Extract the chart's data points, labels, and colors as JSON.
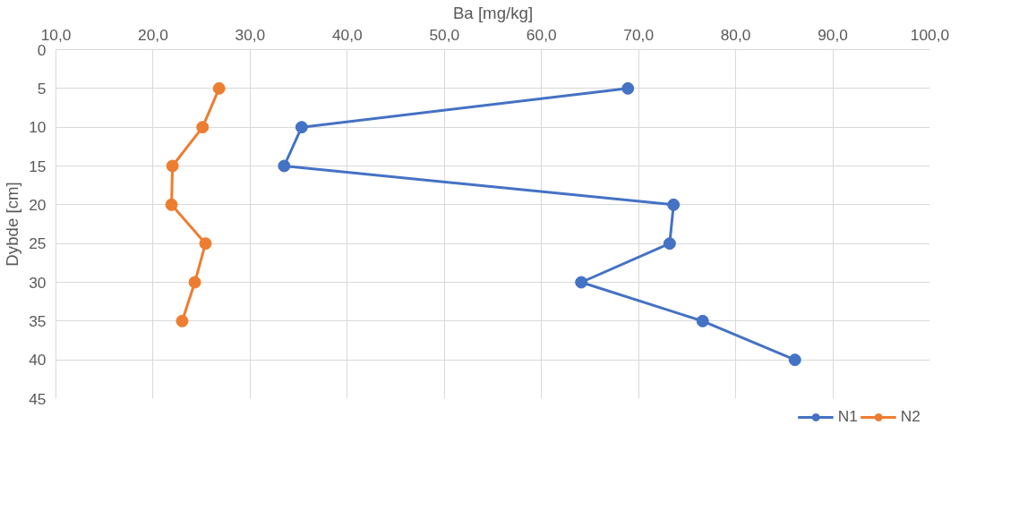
{
  "chart_data": {
    "type": "line",
    "xlabel": "Ba [mg/kg]",
    "ylabel": "Dybde [cm]",
    "xlim": [
      10,
      100
    ],
    "xticks": [
      {
        "value": 10,
        "label": "10,0"
      },
      {
        "value": 20,
        "label": "20,0"
      },
      {
        "value": 30,
        "label": "30,0"
      },
      {
        "value": 40,
        "label": "40,0"
      },
      {
        "value": 50,
        "label": "50,0"
      },
      {
        "value": 60,
        "label": "60,0"
      },
      {
        "value": 70,
        "label": "70,0"
      },
      {
        "value": 80,
        "label": "80,0"
      },
      {
        "value": 90,
        "label": "90,0"
      },
      {
        "value": 100,
        "label": "100,0"
      }
    ],
    "ylim": [
      45,
      0
    ],
    "yticks": [
      0,
      5,
      10,
      15,
      20,
      25,
      30,
      35,
      40,
      45
    ],
    "grid": true,
    "legend": "bottom",
    "marker": "circle",
    "line_style": "solid",
    "series": [
      {
        "name": "N1",
        "color": "#4472c4",
        "x": [
          68.9,
          35.3,
          33.5,
          73.6,
          73.2,
          64.1,
          76.6,
          86.1
        ],
        "values": [
          5,
          10,
          15,
          20,
          25,
          30,
          35,
          40
        ]
      },
      {
        "name": "N2",
        "color": "#ed7d31",
        "x": [
          26.8,
          25.1,
          22.0,
          21.9,
          25.4,
          24.3,
          23.0
        ],
        "values": [
          5,
          10,
          15,
          20,
          25,
          30,
          35
        ]
      }
    ]
  }
}
